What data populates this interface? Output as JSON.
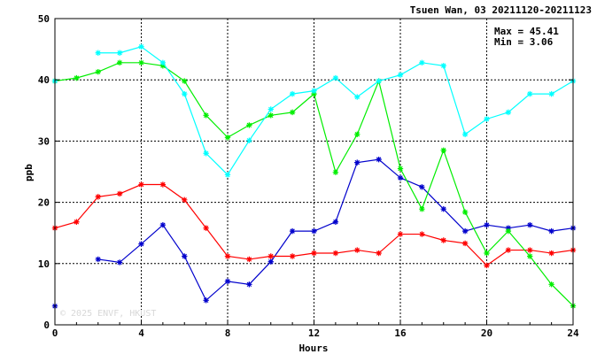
{
  "chart_data": {
    "type": "line",
    "title": "Tsuen Wan, 03 20211120-20211123",
    "xlabel": "Hours",
    "ylabel": "ppb",
    "xlim": [
      0,
      24
    ],
    "ylim": [
      0,
      50
    ],
    "xticks": [
      "0",
      "4",
      "8",
      "12",
      "16",
      "20",
      "24"
    ],
    "yticks": [
      "0",
      "10",
      "20",
      "30",
      "40",
      "50"
    ],
    "grid": true,
    "stats": {
      "max": "Max = 45.41",
      "min": "Min =  3.06"
    },
    "watermark": "© 2025 ENVF, HKUST",
    "x": [
      0,
      1,
      2,
      3,
      4,
      5,
      6,
      7,
      8,
      9,
      10,
      11,
      12,
      13,
      14,
      15,
      16,
      17,
      18,
      19,
      20,
      21,
      22,
      23,
      24
    ],
    "series": [
      {
        "color": "#0000cc",
        "marker": "asterisk",
        "values": [
          3.06,
          null,
          10.7,
          10.2,
          13.2,
          16.3,
          11.2,
          4.0,
          7.1,
          6.6,
          10.3,
          15.3,
          15.3,
          16.8,
          26.5,
          27.0,
          24.0,
          22.5,
          18.9,
          15.3,
          16.3,
          15.8,
          16.3,
          15.3,
          15.8
        ]
      },
      {
        "color": "#ff0000",
        "marker": "asterisk",
        "values": [
          15.8,
          16.8,
          20.9,
          21.4,
          22.9,
          22.9,
          20.4,
          15.8,
          11.2,
          10.7,
          11.2,
          11.2,
          11.7,
          11.7,
          12.2,
          11.7,
          14.8,
          14.8,
          13.8,
          13.3,
          9.7,
          12.2,
          12.2,
          11.7,
          12.2
        ]
      },
      {
        "color": "#00ee00",
        "marker": "asterisk",
        "values": [
          39.8,
          40.3,
          41.3,
          42.8,
          42.8,
          42.3,
          39.8,
          34.2,
          30.6,
          32.6,
          34.2,
          34.7,
          37.7,
          24.9,
          31.1,
          39.8,
          25.5,
          18.9,
          28.5,
          18.4,
          11.7,
          15.3,
          11.2,
          6.6,
          3.1
        ]
      },
      {
        "color": "#00ffff",
        "marker": "asterisk",
        "values": [
          39.8,
          null,
          44.4,
          44.4,
          45.41,
          42.8,
          37.7,
          28.0,
          24.5,
          30.1,
          35.2,
          37.7,
          38.2,
          40.3,
          37.2,
          39.8,
          40.8,
          42.8,
          42.3,
          31.1,
          33.6,
          34.7,
          37.7,
          37.7,
          39.8
        ]
      }
    ]
  }
}
